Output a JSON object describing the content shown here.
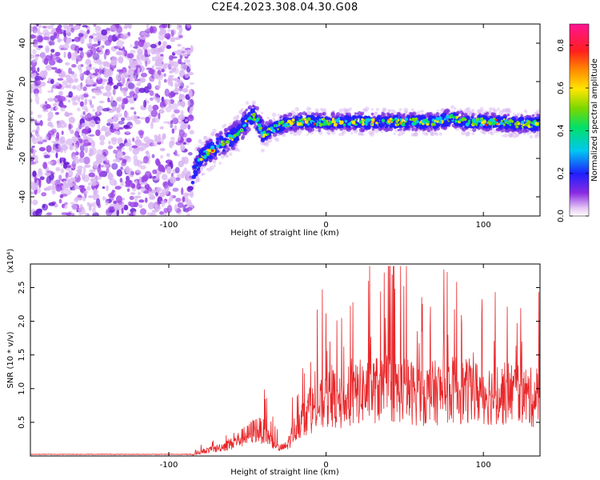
{
  "figure_title": "C2E4.2023.308.04.30.G08",
  "colors": {
    "snr_line": "#e8282b",
    "axis": "#000000",
    "background": "#ffffff"
  },
  "chart_data": [
    {
      "type": "heatmap",
      "title": "C2E4.2023.308.04.30.G08",
      "xlabel": "Height of straight line (km)",
      "ylabel": "Frequency (Hz)",
      "xlim": [
        -188,
        136
      ],
      "ylim": [
        -50,
        50
      ],
      "xticks": [
        -100,
        0,
        100
      ],
      "yticks": [
        -40,
        -20,
        0,
        20,
        40
      ],
      "grid": false,
      "noise_region_x": [
        -188,
        -85
      ],
      "ridge": {
        "x": [
          -85,
          -80,
          -75,
          -70,
          -65,
          -60,
          -55,
          -50,
          -45,
          -40,
          -35,
          -30,
          -20,
          -10,
          0,
          10,
          20,
          30,
          40,
          50,
          60,
          70,
          80,
          90,
          100,
          110,
          120,
          136
        ],
        "y": [
          -30,
          -20,
          -17,
          -14,
          -12,
          -9,
          -6,
          0,
          2,
          -7,
          -5,
          -3,
          -1,
          -1,
          -1,
          -1,
          -1,
          -1,
          -1,
          -1,
          -1,
          -1,
          1,
          -1,
          -1,
          -1,
          -2,
          -2
        ]
      },
      "colorbar": {
        "label": "Normalized spectral amplitude",
        "ticks": [
          "0.0",
          "0.2",
          "0.4",
          "0.6",
          "0.8"
        ],
        "range": [
          0,
          0.9
        ],
        "colormap": "rainbow (white-purple-blue-cyan-green-yellow-red-magenta)"
      }
    },
    {
      "type": "line",
      "xlabel": "Height of straight line (km)",
      "ylabel": "SNR (10 * v/v)",
      "yscale_label": "(x10⁴)",
      "xlim": [
        -188,
        136
      ],
      "ylim": [
        0,
        2.85
      ],
      "xticks": [
        -100,
        0,
        100
      ],
      "yticks": [
        "0.5",
        "1.0",
        "1.5",
        "2.0",
        "2.5"
      ],
      "grid": false,
      "series": [
        {
          "envelope_x": [
            -188,
            -85,
            -80,
            -75,
            -70,
            -60,
            -55,
            -50,
            -45,
            -40,
            -35,
            -30,
            -25,
            -20,
            -15,
            -10,
            -5,
            0,
            5,
            10,
            15,
            20,
            30,
            40,
            50,
            60,
            70,
            80,
            90,
            100,
            110,
            120,
            130,
            136
          ],
          "envelope_y": [
            0.02,
            0.02,
            0.08,
            0.12,
            0.15,
            0.25,
            0.35,
            0.42,
            0.55,
            0.5,
            0.35,
            0.15,
            0.2,
            0.55,
            0.8,
            0.95,
            1.0,
            1.1,
            1.2,
            1.0,
            1.1,
            1.3,
            1.35,
            1.4,
            1.35,
            1.25,
            1.3,
            1.35,
            1.3,
            1.3,
            1.25,
            1.3,
            1.2,
            1.15
          ]
        }
      ]
    }
  ]
}
